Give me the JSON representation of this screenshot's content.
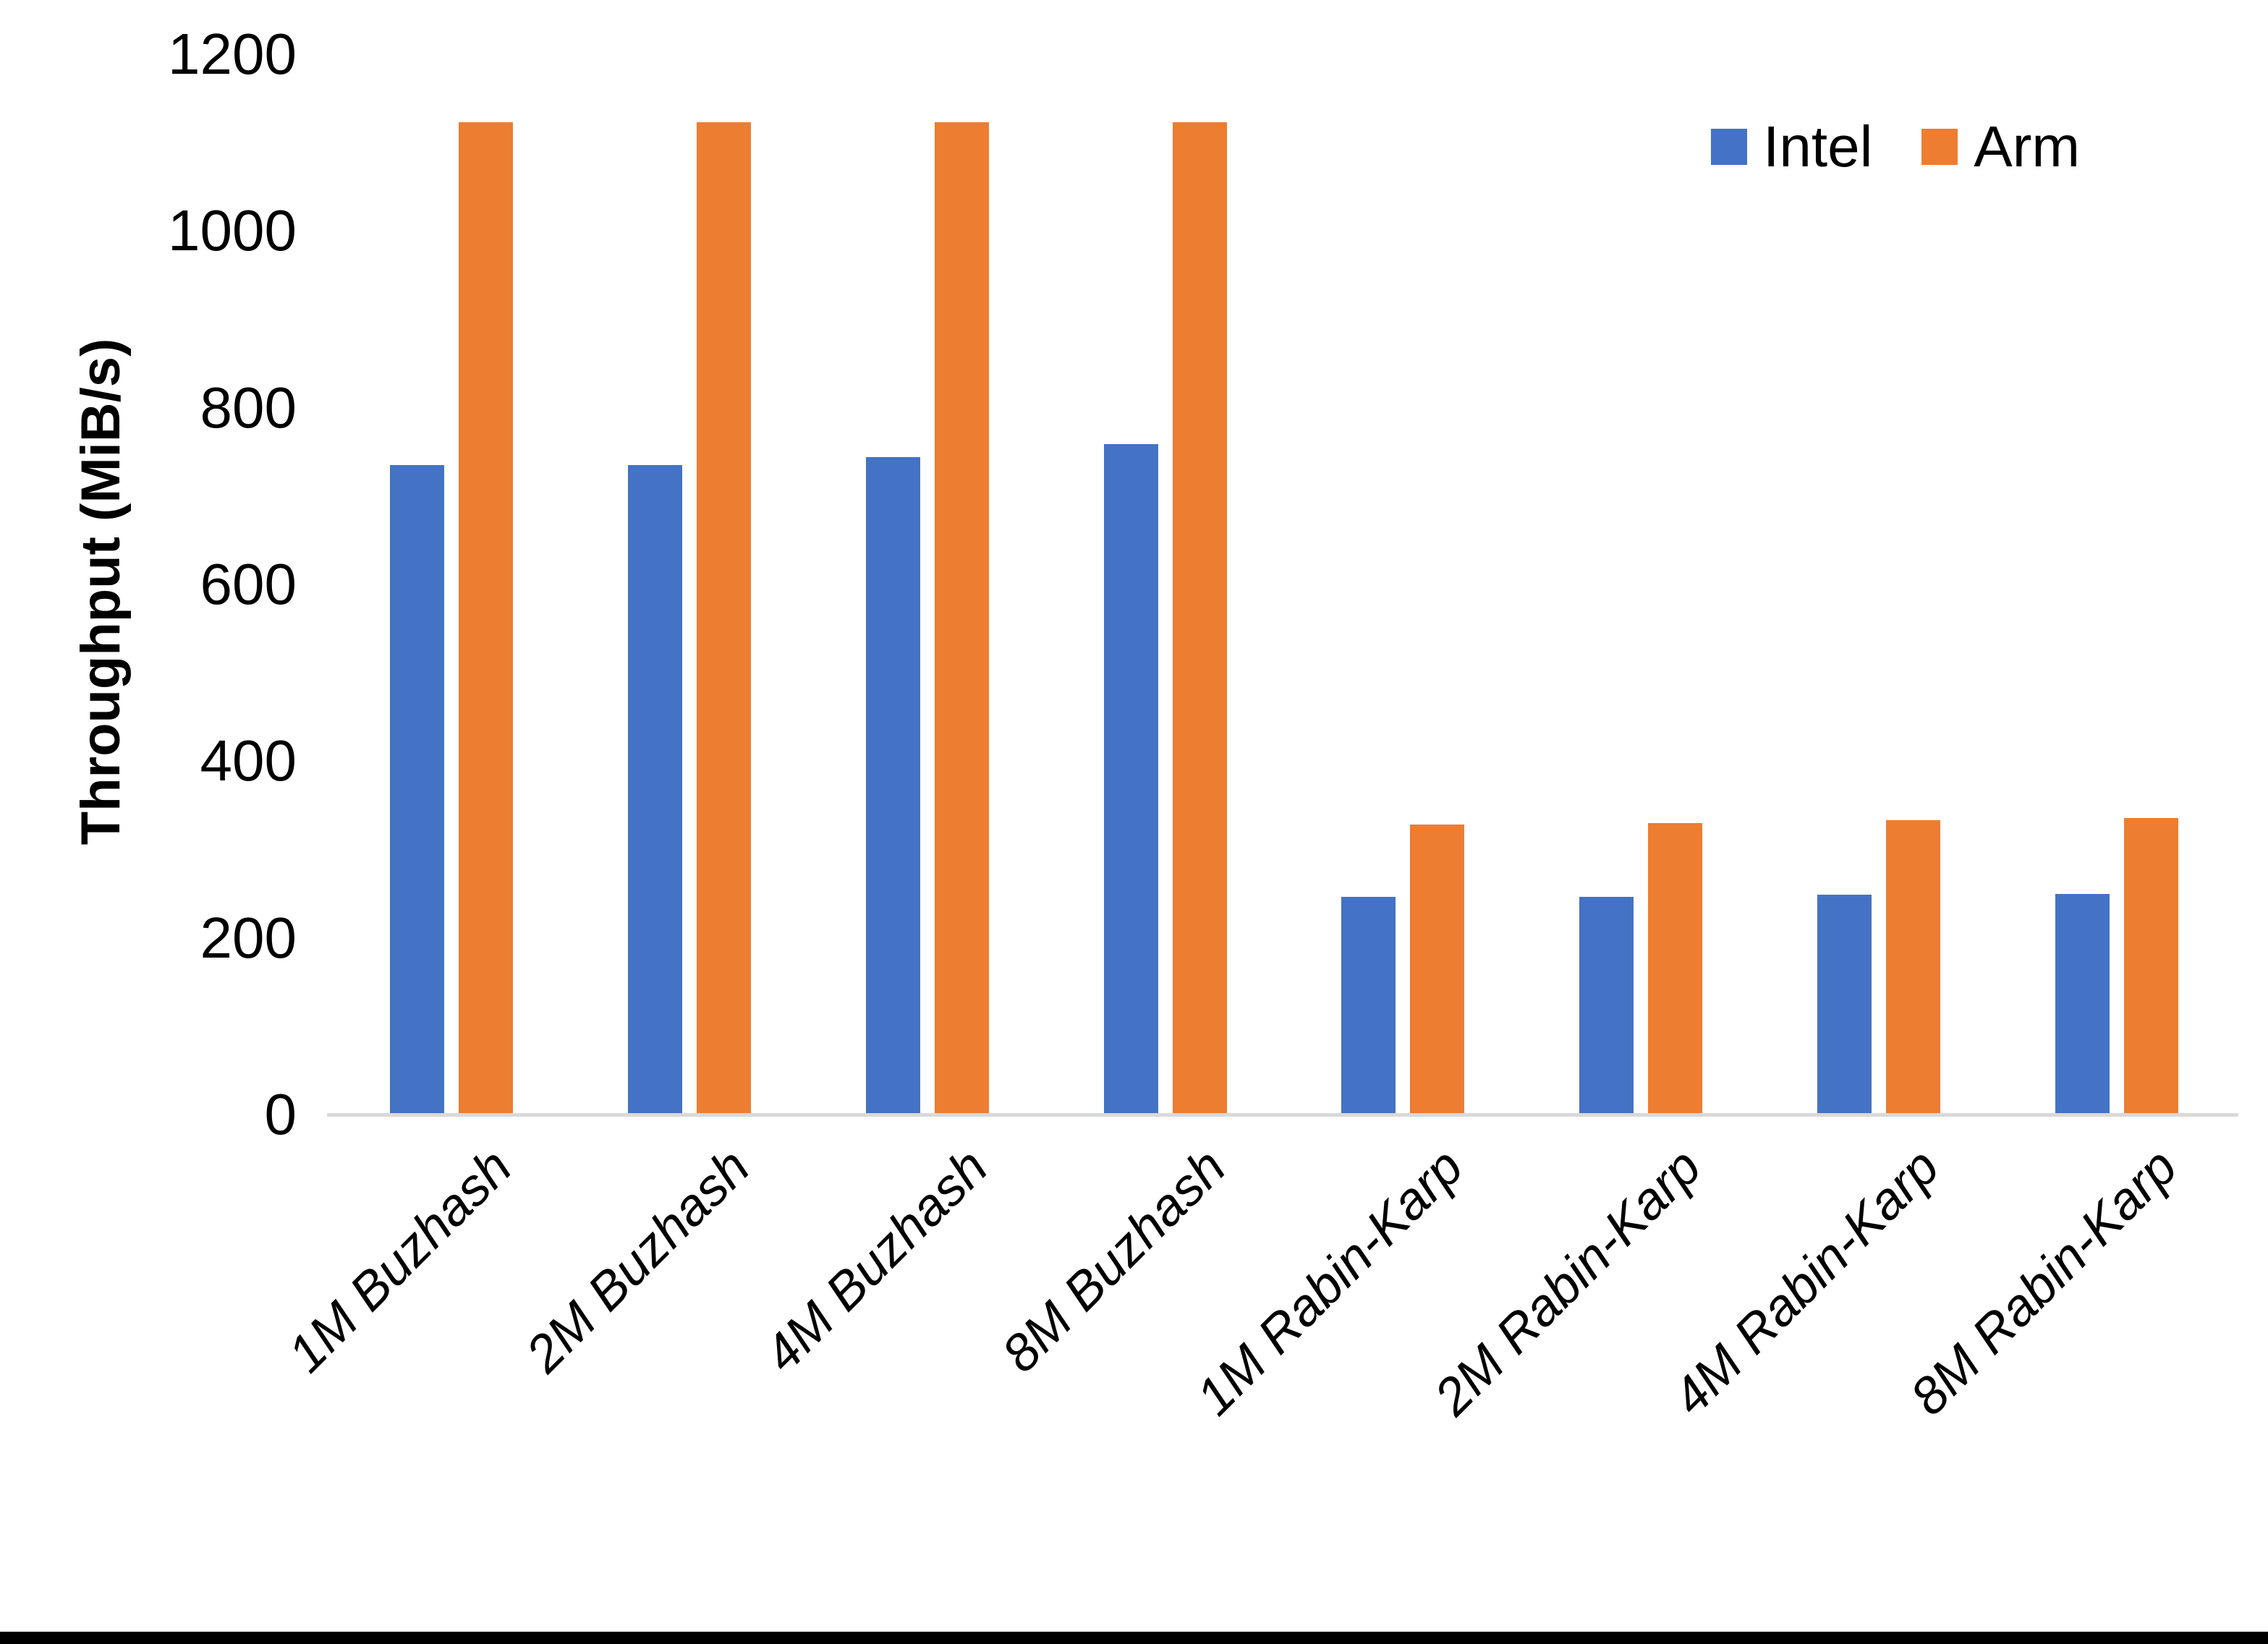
{
  "chart_data": {
    "type": "bar",
    "title": "",
    "xlabel": "",
    "ylabel": "Throughput (MiB/s)",
    "ylim": [
      0,
      1200
    ],
    "yticks": [
      0,
      200,
      400,
      600,
      800,
      1000,
      1200
    ],
    "grid": false,
    "legend_position": "top-right",
    "background_color": "#ffffff",
    "axis_line_color": "#d9d9d9",
    "categories": [
      "1M Buzhash",
      "2M Buzhash",
      "4M Buzhash",
      "8M Buzhash",
      "1M Rabin-Karp",
      "2M Rabin-Karp",
      "4M Rabin-Karp",
      "8M Rabin-Karp"
    ],
    "series": [
      {
        "name": "Intel",
        "color": "#4472C4",
        "values": [
          735,
          735,
          744,
          759,
          246,
          246,
          249,
          250
        ]
      },
      {
        "name": "Arm",
        "color": "#ED7D31",
        "values": [
          1123,
          1123,
          1123,
          1123,
          328,
          330,
          333,
          336
        ]
      }
    ]
  },
  "legend": {
    "items": [
      {
        "label": "Intel",
        "color": "#4472C4"
      },
      {
        "label": "Arm",
        "color": "#ED7D31"
      }
    ]
  },
  "footer": {
    "bottom_bar_color": "#000000"
  }
}
